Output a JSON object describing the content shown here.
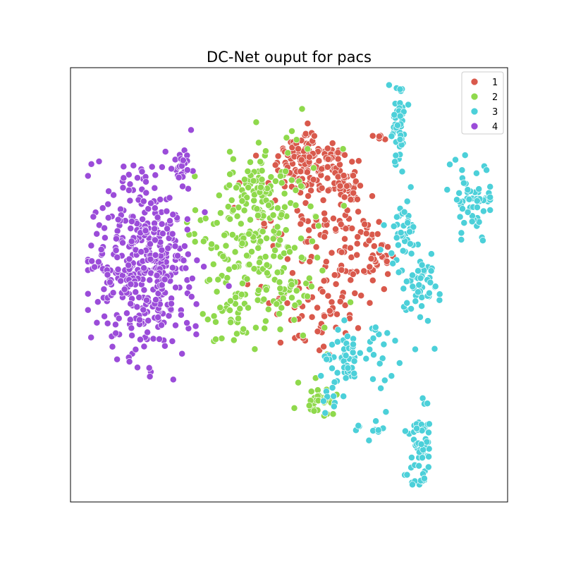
{
  "chart_data": {
    "type": "scatter",
    "title": "DC-Net ouput for pacs",
    "xlabel": "",
    "ylabel": "",
    "axes_ticks": false,
    "grid": false,
    "legend_position": "top-right",
    "series": [
      {
        "name": "1",
        "color": "#d9594c",
        "clusters": [
          {
            "cx": 0.53,
            "cy": 0.22,
            "sx": 0.03,
            "sy": 0.04,
            "n": 90
          },
          {
            "cx": 0.59,
            "cy": 0.21,
            "sx": 0.03,
            "sy": 0.03,
            "n": 40
          },
          {
            "cx": 0.635,
            "cy": 0.275,
            "sx": 0.02,
            "sy": 0.02,
            "n": 35
          },
          {
            "cx": 0.62,
            "cy": 0.38,
            "sx": 0.05,
            "sy": 0.06,
            "n": 70
          },
          {
            "cx": 0.69,
            "cy": 0.44,
            "sx": 0.02,
            "sy": 0.03,
            "n": 30
          },
          {
            "cx": 0.71,
            "cy": 0.16,
            "sx": 0.015,
            "sy": 0.01,
            "n": 5
          },
          {
            "cx": 0.58,
            "cy": 0.54,
            "sx": 0.05,
            "sy": 0.06,
            "n": 50
          },
          {
            "cx": 0.48,
            "cy": 0.36,
            "sx": 0.05,
            "sy": 0.08,
            "n": 30
          },
          {
            "cx": 0.54,
            "cy": 0.59,
            "sx": 0.04,
            "sy": 0.03,
            "n": 15
          }
        ]
      },
      {
        "name": "2",
        "color": "#8fd94c",
        "clusters": [
          {
            "cx": 0.43,
            "cy": 0.42,
            "sx": 0.07,
            "sy": 0.09,
            "n": 220
          },
          {
            "cx": 0.44,
            "cy": 0.28,
            "sx": 0.03,
            "sy": 0.04,
            "n": 60
          },
          {
            "cx": 0.37,
            "cy": 0.58,
            "sx": 0.02,
            "sy": 0.03,
            "n": 20
          },
          {
            "cx": 0.56,
            "cy": 0.75,
            "sx": 0.02,
            "sy": 0.03,
            "n": 30
          },
          {
            "cx": 0.54,
            "cy": 0.2,
            "sx": 0.06,
            "sy": 0.08,
            "n": 8
          }
        ]
      },
      {
        "name": "3",
        "color": "#4cd0d9",
        "clusters": [
          {
            "cx": 0.75,
            "cy": 0.13,
            "sx": 0.012,
            "sy": 0.05,
            "n": 45
          },
          {
            "cx": 0.92,
            "cy": 0.3,
            "sx": 0.025,
            "sy": 0.04,
            "n": 60
          },
          {
            "cx": 0.76,
            "cy": 0.38,
            "sx": 0.02,
            "sy": 0.04,
            "n": 40
          },
          {
            "cx": 0.8,
            "cy": 0.51,
            "sx": 0.02,
            "sy": 0.04,
            "n": 50
          },
          {
            "cx": 0.63,
            "cy": 0.67,
            "sx": 0.025,
            "sy": 0.03,
            "n": 40
          },
          {
            "cx": 0.7,
            "cy": 0.66,
            "sx": 0.04,
            "sy": 0.05,
            "n": 25
          },
          {
            "cx": 0.59,
            "cy": 0.76,
            "sx": 0.015,
            "sy": 0.02,
            "n": 10
          },
          {
            "cx": 0.7,
            "cy": 0.83,
            "sx": 0.015,
            "sy": 0.02,
            "n": 12
          },
          {
            "cx": 0.8,
            "cy": 0.87,
            "sx": 0.015,
            "sy": 0.06,
            "n": 55
          }
        ]
      },
      {
        "name": "4",
        "color": "#9b4cd9",
        "clusters": [
          {
            "cx": 0.17,
            "cy": 0.46,
            "sx": 0.06,
            "sy": 0.1,
            "n": 420
          },
          {
            "cx": 0.255,
            "cy": 0.23,
            "sx": 0.01,
            "sy": 0.03,
            "n": 25
          }
        ]
      }
    ]
  }
}
